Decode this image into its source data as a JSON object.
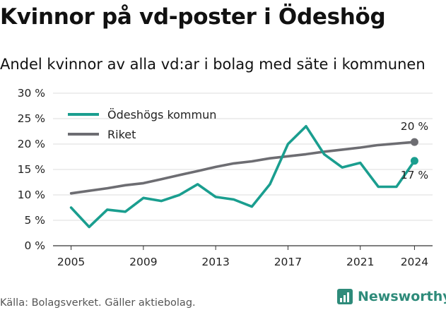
{
  "header": {
    "title": "Kvinnor på vd-poster i Ödeshög",
    "subtitle": "Andel kvinnor av alla vd:ar i bolag med säte i kommunen"
  },
  "footer": {
    "source": "Källa: Bolagsverket. Gäller aktiebolag.",
    "brand": "Newsworthy",
    "brand_color": "#2e8b7a"
  },
  "chart_data": {
    "type": "line",
    "x": [
      2005,
      2006,
      2007,
      2008,
      2009,
      2010,
      2011,
      2012,
      2013,
      2014,
      2015,
      2016,
      2017,
      2018,
      2019,
      2020,
      2021,
      2022,
      2023,
      2024
    ],
    "x_ticks": [
      "2005",
      "2009",
      "2013",
      "2017",
      "2021",
      "2024"
    ],
    "y_ticks": [
      "0 %",
      "5 %",
      "10 %",
      "15 %",
      "20 %",
      "25 %",
      "30 %"
    ],
    "ylim": [
      0,
      30
    ],
    "grid": true,
    "legend_placement": "top-left",
    "series": [
      {
        "name": "Ödeshögs kommun",
        "color": "#1a9e8f",
        "values": [
          7.5,
          3.7,
          7.1,
          6.7,
          9.4,
          8.8,
          10.0,
          12.1,
          9.6,
          9.1,
          7.7,
          12.1,
          20.0,
          23.5,
          18.0,
          15.4,
          16.3,
          11.6,
          11.6,
          16.7
        ],
        "end_label": "17 %"
      },
      {
        "name": "Riket",
        "color": "#6d6d72",
        "values": [
          10.3,
          10.8,
          11.3,
          11.9,
          12.3,
          13.1,
          13.9,
          14.7,
          15.5,
          16.2,
          16.6,
          17.2,
          17.6,
          18.0,
          18.5,
          18.9,
          19.3,
          19.8,
          20.1,
          20.4
        ],
        "end_label": "20 %"
      }
    ]
  }
}
